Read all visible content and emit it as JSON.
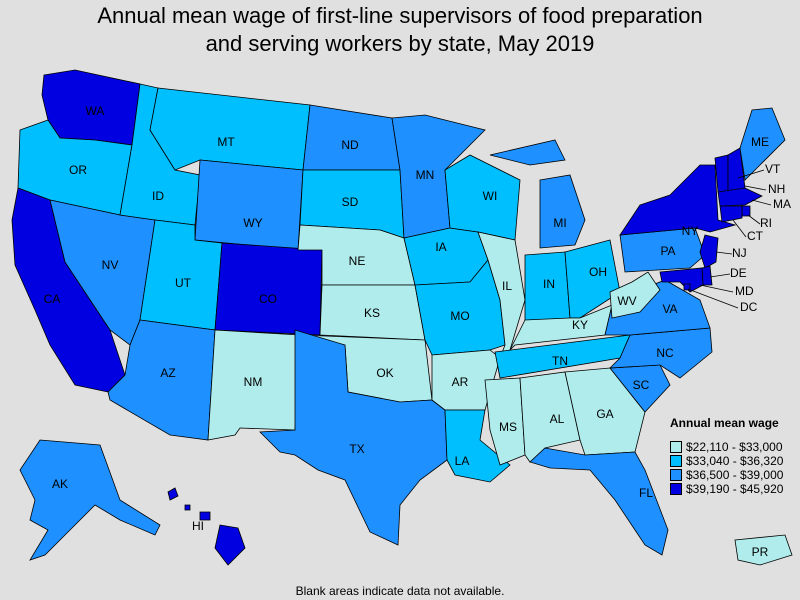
{
  "title": {
    "line1": "Annual mean wage of first-line supervisors of food preparation",
    "line2": "and serving workers by state, May 2019"
  },
  "footnote": "Blank areas indicate data not available.",
  "legend": {
    "title": "Annual mean wage",
    "bins": [
      {
        "label": "$22,110 - $33,000",
        "color": "#b0ecec"
      },
      {
        "label": "$33,040 - $36,320",
        "color": "#00bfff"
      },
      {
        "label": "$36,500 - $39,000",
        "color": "#1e90ff"
      },
      {
        "label": "$39,190 - $45,920",
        "color": "#0000e0"
      }
    ]
  },
  "states": [
    {
      "code": "WA",
      "bin": 3
    },
    {
      "code": "OR",
      "bin": 1
    },
    {
      "code": "CA",
      "bin": 3
    },
    {
      "code": "NV",
      "bin": 2
    },
    {
      "code": "ID",
      "bin": 1
    },
    {
      "code": "MT",
      "bin": 1
    },
    {
      "code": "WY",
      "bin": 2
    },
    {
      "code": "UT",
      "bin": 1
    },
    {
      "code": "AZ",
      "bin": 2
    },
    {
      "code": "CO",
      "bin": 3
    },
    {
      "code": "NM",
      "bin": 0
    },
    {
      "code": "ND",
      "bin": 2
    },
    {
      "code": "SD",
      "bin": 1
    },
    {
      "code": "NE",
      "bin": 0
    },
    {
      "code": "KS",
      "bin": 0
    },
    {
      "code": "OK",
      "bin": 0
    },
    {
      "code": "TX",
      "bin": 2
    },
    {
      "code": "MN",
      "bin": 2
    },
    {
      "code": "IA",
      "bin": 1
    },
    {
      "code": "MO",
      "bin": 1
    },
    {
      "code": "AR",
      "bin": 0
    },
    {
      "code": "LA",
      "bin": 1
    },
    {
      "code": "WI",
      "bin": 1
    },
    {
      "code": "IL",
      "bin": 0
    },
    {
      "code": "MI",
      "bin": 2
    },
    {
      "code": "IN",
      "bin": 1
    },
    {
      "code": "OH",
      "bin": 1
    },
    {
      "code": "KY",
      "bin": 0
    },
    {
      "code": "TN",
      "bin": 1
    },
    {
      "code": "MS",
      "bin": 0
    },
    {
      "code": "AL",
      "bin": 0
    },
    {
      "code": "GA",
      "bin": 0
    },
    {
      "code": "FL",
      "bin": 2
    },
    {
      "code": "SC",
      "bin": 2
    },
    {
      "code": "NC",
      "bin": 2
    },
    {
      "code": "VA",
      "bin": 2
    },
    {
      "code": "WV",
      "bin": 0
    },
    {
      "code": "PA",
      "bin": 2
    },
    {
      "code": "NY",
      "bin": 3
    },
    {
      "code": "VT",
      "bin": 3
    },
    {
      "code": "NH",
      "bin": 3
    },
    {
      "code": "ME",
      "bin": 2
    },
    {
      "code": "MA",
      "bin": 3
    },
    {
      "code": "RI",
      "bin": 3
    },
    {
      "code": "CT",
      "bin": 3
    },
    {
      "code": "NJ",
      "bin": 3
    },
    {
      "code": "DE",
      "bin": 3
    },
    {
      "code": "MD",
      "bin": 3
    },
    {
      "code": "DC",
      "bin": 3
    },
    {
      "code": "AK",
      "bin": 2
    },
    {
      "code": "HI",
      "bin": 3
    },
    {
      "code": "PR",
      "bin": 0
    }
  ]
}
